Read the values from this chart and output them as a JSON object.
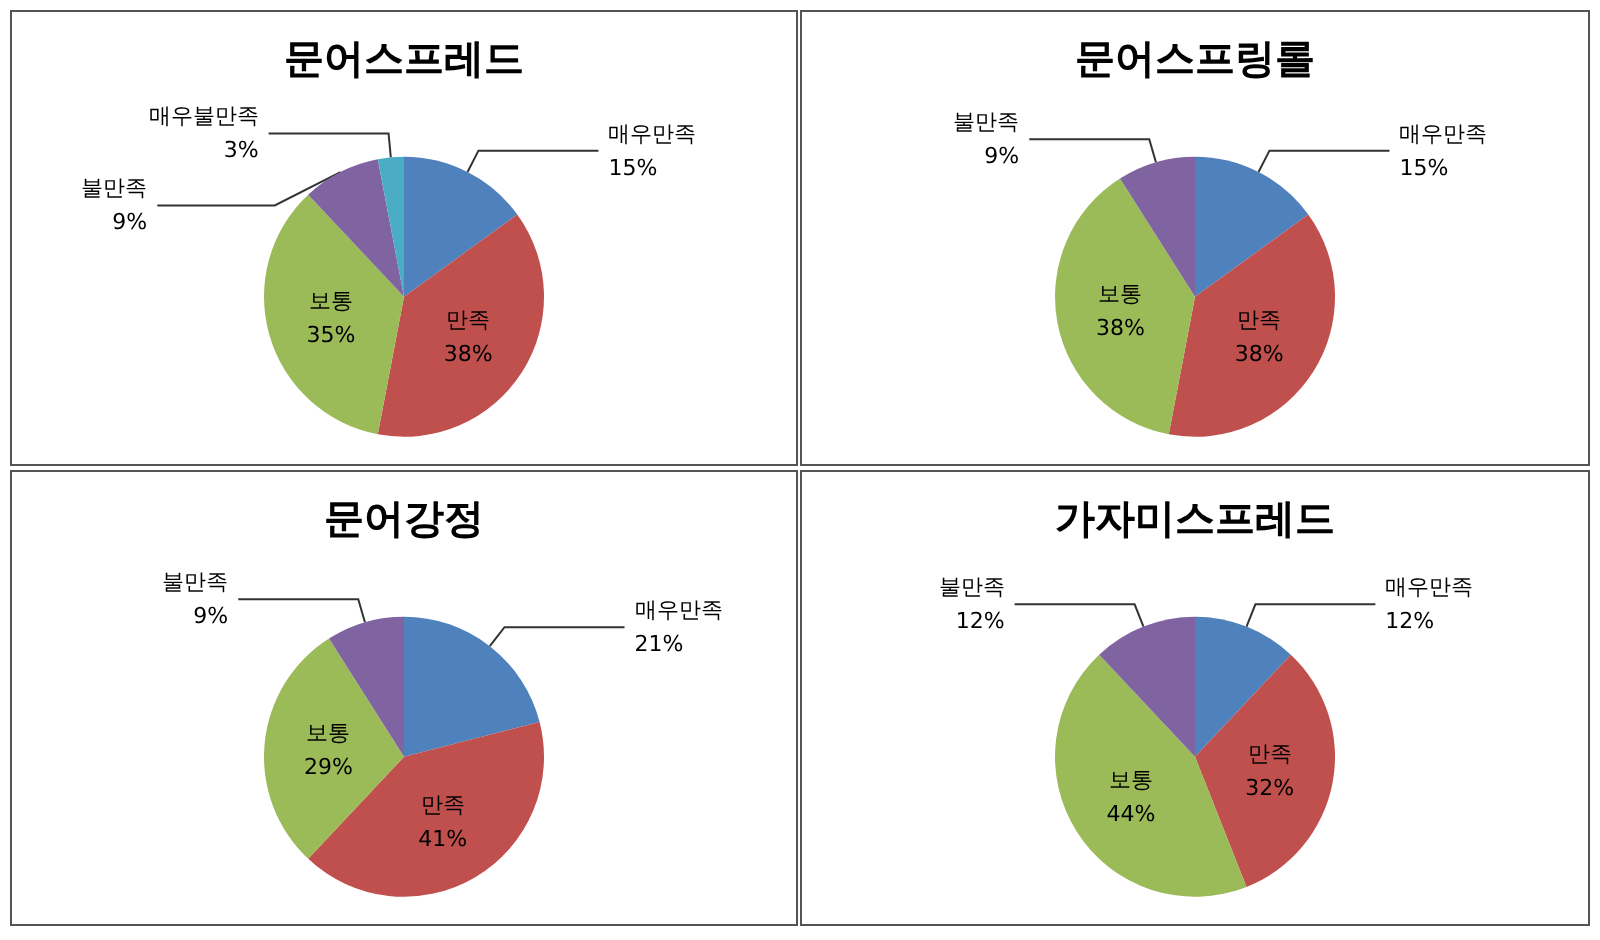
{
  "chart_data": [
    {
      "type": "pie",
      "title": "문어스프레드",
      "categories": [
        "매우만족",
        "만족",
        "보통",
        "불만족",
        "매우불만족"
      ],
      "values": [
        15,
        38,
        35,
        9,
        3
      ],
      "value_labels": [
        "15%",
        "38%",
        "35%",
        "9%",
        "3%"
      ],
      "colors": [
        "#4f81bd",
        "#c0504d",
        "#9bbb59",
        "#8064a2",
        "#4bacc6"
      ]
    },
    {
      "type": "pie",
      "title": "문어스프링롤",
      "categories": [
        "매우만족",
        "만족",
        "보통",
        "불만족"
      ],
      "values": [
        15,
        38,
        38,
        9
      ],
      "value_labels": [
        "15%",
        "38%",
        "38%",
        "9%"
      ],
      "colors": [
        "#4f81bd",
        "#c0504d",
        "#9bbb59",
        "#8064a2"
      ]
    },
    {
      "type": "pie",
      "title": "문어강정",
      "categories": [
        "매우만족",
        "만족",
        "보통",
        "불만족"
      ],
      "values": [
        21,
        41,
        29,
        9
      ],
      "value_labels": [
        "21%",
        "41%",
        "29%",
        "9%"
      ],
      "colors": [
        "#4f81bd",
        "#c0504d",
        "#9bbb59",
        "#8064a2"
      ]
    },
    {
      "type": "pie",
      "title": "가자미스프레드",
      "categories": [
        "매우만족",
        "만족",
        "보통",
        "불만족"
      ],
      "values": [
        12,
        32,
        44,
        12
      ],
      "value_labels": [
        "12%",
        "32%",
        "44%",
        "12%"
      ],
      "colors": [
        "#4f81bd",
        "#c0504d",
        "#9bbb59",
        "#8064a2"
      ]
    }
  ]
}
